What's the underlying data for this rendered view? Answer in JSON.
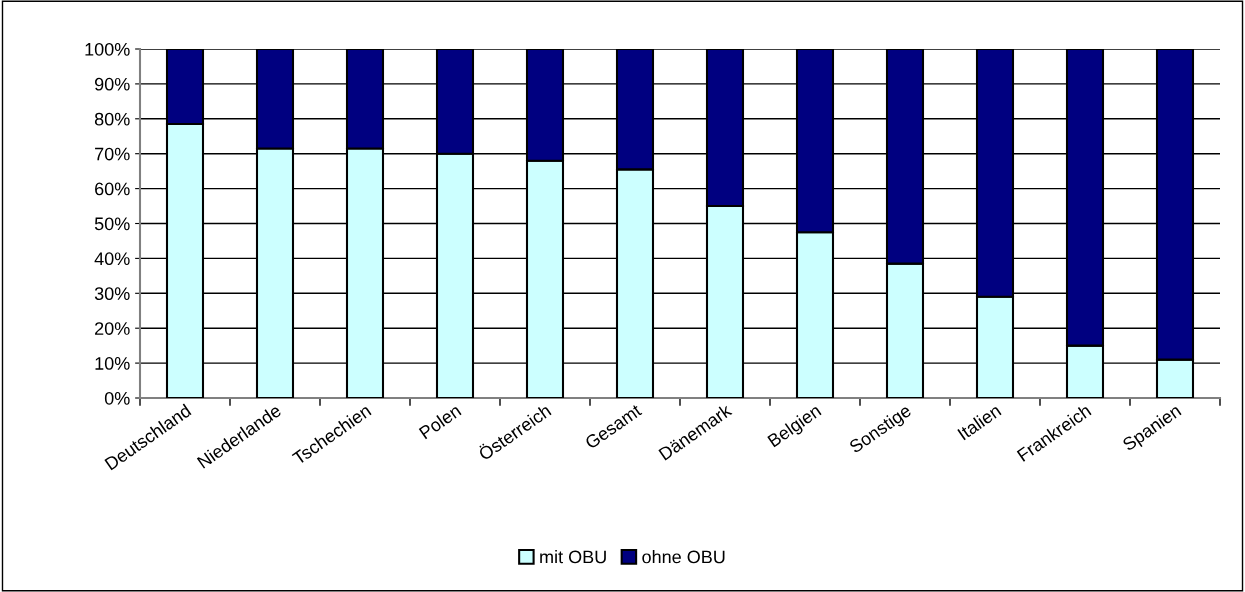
{
  "chart_data": {
    "type": "bar",
    "stacked": true,
    "categories": [
      "Deutschland",
      "Niederlande",
      "Tschechien",
      "Polen",
      "Österreich",
      "Gesamt",
      "Dänemark",
      "Belgien",
      "Sonstige",
      "Italien",
      "Frankreich",
      "Spanien"
    ],
    "series": [
      {
        "name": "mit OBU",
        "color": "#ccffff",
        "values": [
          78.5,
          71.5,
          71.5,
          70,
          68,
          65.5,
          55,
          47.5,
          38.5,
          29,
          15,
          11
        ]
      },
      {
        "name": "ohne OBU",
        "color": "#000080",
        "values": [
          21.5,
          28.5,
          28.5,
          30,
          32,
          34.5,
          45,
          52.5,
          61.5,
          71,
          85,
          89
        ]
      }
    ],
    "ylim": [
      0,
      100
    ],
    "yticks": [
      {
        "value": 0,
        "label": "0%"
      },
      {
        "value": 10,
        "label": "10%"
      },
      {
        "value": 20,
        "label": "20%"
      },
      {
        "value": 30,
        "label": "30%"
      },
      {
        "value": 40,
        "label": "40%"
      },
      {
        "value": 50,
        "label": "50%"
      },
      {
        "value": 60,
        "label": "60%"
      },
      {
        "value": 70,
        "label": "70%"
      },
      {
        "value": 80,
        "label": "80%"
      },
      {
        "value": 90,
        "label": "90%"
      },
      {
        "value": 100,
        "label": "100%"
      }
    ],
    "grid": "y",
    "legend": "bottom"
  }
}
